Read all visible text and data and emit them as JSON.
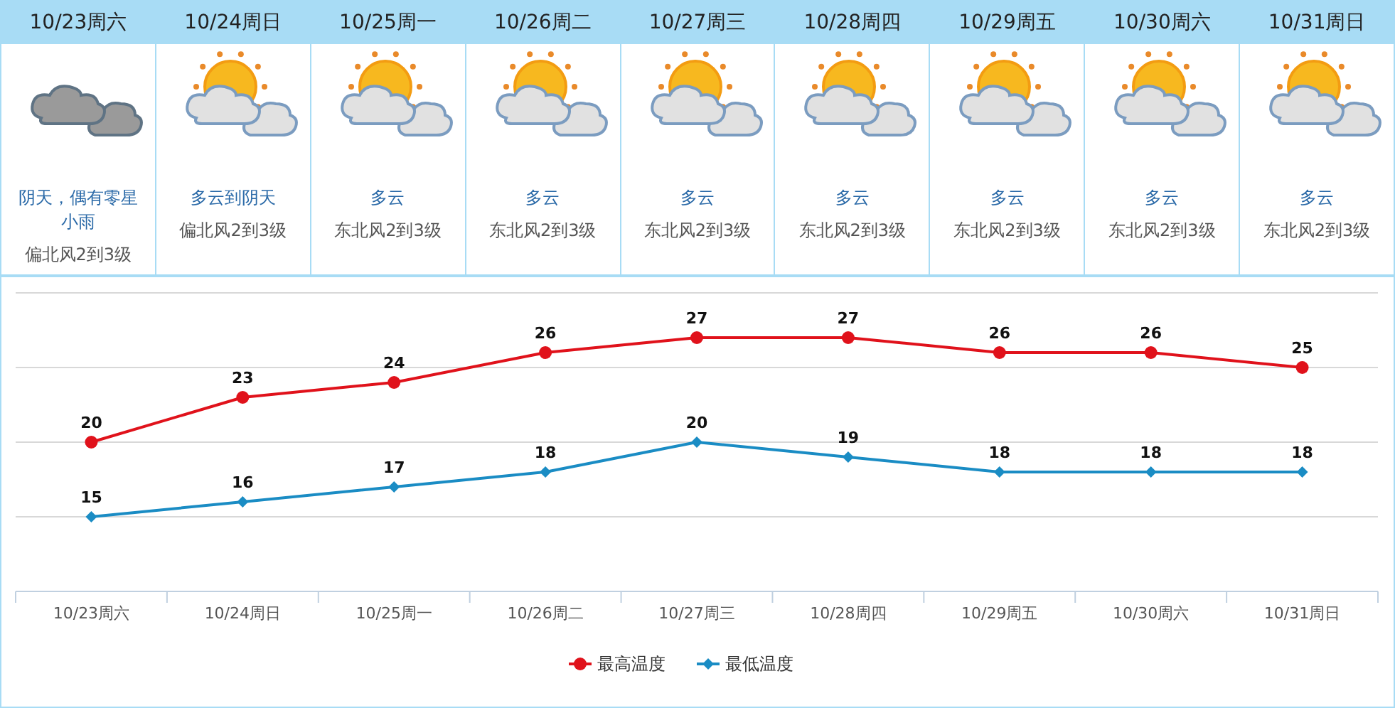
{
  "chart_data": [
    {
      "type": "other",
      "categories": [
        "10/23周六",
        "10/24周日",
        "10/25周一",
        "10/26周二",
        "10/27周三",
        "10/28周四",
        "10/29周五",
        "10/30周六",
        "10/31周日"
      ],
      "annotations": [
        "阴天，偶有零星小雨",
        "偏北风2到3级",
        "多云到阴天",
        "偏北风2到3级",
        "多云",
        "东北风2到3级",
        "多云",
        "东北风2到3级",
        "多云",
        "东北风2到3级",
        "多云",
        "东北风2到3级",
        "多云",
        "东北风2到3级",
        "多云",
        "东北风2到3级",
        "多云",
        "东北风2到3级"
      ]
    },
    {
      "type": "line",
      "categories": [
        "10/23周六",
        "10/24周日",
        "10/25周一",
        "10/26周二",
        "10/27周三",
        "10/28周四",
        "10/29周五",
        "10/30周六",
        "10/31周日"
      ],
      "series": [
        {
          "name": "最高温度",
          "color": "#e0121b",
          "marker": "circle",
          "values": [
            20,
            23,
            24,
            26,
            27,
            27,
            26,
            26,
            25
          ]
        },
        {
          "name": "最低温度",
          "color": "#1a8cc4",
          "marker": "diamond",
          "values": [
            15,
            16,
            17,
            18,
            20,
            19,
            18,
            18,
            18
          ]
        }
      ],
      "ylim": [
        10,
        30
      ],
      "yticks": [
        {
          "value": 10,
          "label": null
        },
        {
          "value": 15,
          "label": null
        },
        {
          "value": 20,
          "label": null
        },
        {
          "value": 25,
          "label": null
        },
        {
          "value": 30,
          "label": null
        }
      ],
      "tick_labels": "x",
      "grid": "y",
      "data_labels": true,
      "legend": "bottom"
    }
  ]
}
